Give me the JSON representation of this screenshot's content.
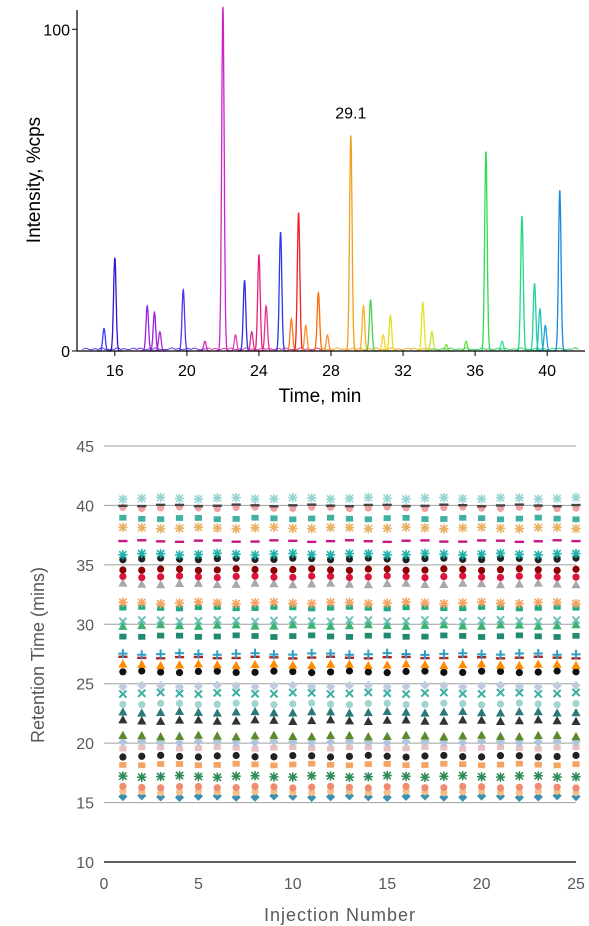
{
  "chart_data": [
    {
      "type": "line",
      "xlabel": "Time, min",
      "ylabel": "Intensity, %cps",
      "xlim": [
        13.9,
        42.1
      ],
      "ylim": [
        0,
        106
      ],
      "x_ticks": [
        "16",
        "20",
        "24",
        "28",
        "32",
        "36",
        "40"
      ],
      "y_ticks": [
        "0",
        "100"
      ],
      "annotations": [
        {
          "text": "29.1",
          "x": 29.1,
          "y": 71
        }
      ],
      "peaks": [
        {
          "rt": 15.4,
          "height": 7,
          "color": "#3a3aff"
        },
        {
          "rt": 16.0,
          "height": 29,
          "color": "#2a1acc"
        },
        {
          "rt": 17.8,
          "height": 14,
          "color": "#9b1ee0"
        },
        {
          "rt": 18.2,
          "height": 12,
          "color": "#9b1ee0"
        },
        {
          "rt": 18.5,
          "height": 6,
          "color": "#b02ad8"
        },
        {
          "rt": 19.8,
          "height": 19,
          "color": "#4a3af0"
        },
        {
          "rt": 21.0,
          "height": 3,
          "color": "#d02ad0"
        },
        {
          "rt": 22.0,
          "height": 107,
          "color": "#cc22cc"
        },
        {
          "rt": 22.7,
          "height": 5,
          "color": "#e040c0"
        },
        {
          "rt": 23.2,
          "height": 22,
          "color": "#3030e0"
        },
        {
          "rt": 23.6,
          "height": 6,
          "color": "#e03090"
        },
        {
          "rt": 24.0,
          "height": 30,
          "color": "#e8207a"
        },
        {
          "rt": 24.4,
          "height": 14,
          "color": "#e83090"
        },
        {
          "rt": 25.2,
          "height": 37,
          "color": "#2a3ae8"
        },
        {
          "rt": 25.8,
          "height": 10,
          "color": "#ff7a20"
        },
        {
          "rt": 26.2,
          "height": 43,
          "color": "#ee2222"
        },
        {
          "rt": 26.6,
          "height": 8,
          "color": "#ff9030"
        },
        {
          "rt": 27.3,
          "height": 18,
          "color": "#ff6a00"
        },
        {
          "rt": 27.8,
          "height": 5,
          "color": "#ff8c30"
        },
        {
          "rt": 29.1,
          "height": 67,
          "color": "#f0a020"
        },
        {
          "rt": 29.8,
          "height": 14,
          "color": "#ffb020"
        },
        {
          "rt": 30.2,
          "height": 16,
          "color": "#50d050"
        },
        {
          "rt": 30.9,
          "height": 5,
          "color": "#ffd020"
        },
        {
          "rt": 31.3,
          "height": 11,
          "color": "#e0e020"
        },
        {
          "rt": 33.1,
          "height": 15,
          "color": "#e8e020"
        },
        {
          "rt": 33.6,
          "height": 6,
          "color": "#c8e020"
        },
        {
          "rt": 34.4,
          "height": 2,
          "color": "#80e030"
        },
        {
          "rt": 35.5,
          "height": 3,
          "color": "#60e040"
        },
        {
          "rt": 36.6,
          "height": 62,
          "color": "#30dc50"
        },
        {
          "rt": 37.5,
          "height": 3,
          "color": "#30e080"
        },
        {
          "rt": 38.6,
          "height": 42,
          "color": "#20d880"
        },
        {
          "rt": 39.3,
          "height": 21,
          "color": "#20d0a0"
        },
        {
          "rt": 39.6,
          "height": 13,
          "color": "#20c0c0"
        },
        {
          "rt": 39.9,
          "height": 8,
          "color": "#20a0e0"
        },
        {
          "rt": 40.7,
          "height": 50,
          "color": "#1888e0"
        }
      ]
    },
    {
      "type": "scatter",
      "xlabel": "Injection Number",
      "ylabel": "Retention Time (mins)",
      "xlim": [
        0,
        25
      ],
      "ylim": [
        10,
        45
      ],
      "x_ticks": [
        "0",
        "5",
        "10",
        "15",
        "20",
        "25"
      ],
      "y_ticks": [
        "10",
        "15",
        "20",
        "25",
        "30",
        "35",
        "40",
        "45"
      ],
      "grid": true,
      "x": [
        1,
        2,
        3,
        4,
        5,
        6,
        7,
        8,
        9,
        10,
        11,
        12,
        13,
        14,
        15,
        16,
        17,
        18,
        19,
        20,
        21,
        22,
        23,
        24,
        25
      ],
      "series": [
        {
          "rt": 15.5,
          "marker": "diamond",
          "color": "#3b8fb0"
        },
        {
          "rt": 15.9,
          "marker": "circle",
          "color": "#f3c08a"
        },
        {
          "rt": 16.3,
          "marker": "circle",
          "color": "#f08b72"
        },
        {
          "rt": 17.2,
          "marker": "asterisk",
          "color": "#2e8b57"
        },
        {
          "rt": 18.2,
          "marker": "square",
          "color": "#f4a460"
        },
        {
          "rt": 18.9,
          "marker": "circle",
          "color": "#222222"
        },
        {
          "rt": 19.6,
          "marker": "square",
          "color": "#e8c0c0"
        },
        {
          "rt": 20.1,
          "marker": "diamond",
          "color": "#b0c4de"
        },
        {
          "rt": 20.6,
          "marker": "triangle",
          "color": "#5a8a2a"
        },
        {
          "rt": 21.9,
          "marker": "triangle",
          "color": "#333333"
        },
        {
          "rt": 22.6,
          "marker": "triangle",
          "color": "#2a7a7a"
        },
        {
          "rt": 23.3,
          "marker": "circle",
          "color": "#9fd4d0"
        },
        {
          "rt": 24.2,
          "marker": "x",
          "color": "#3cb0a0"
        },
        {
          "rt": 24.8,
          "marker": "diamond",
          "color": "#c0cbe0"
        },
        {
          "rt": 26.0,
          "marker": "circle",
          "color": "#111111"
        },
        {
          "rt": 26.6,
          "marker": "triangle",
          "color": "#ff8c00"
        },
        {
          "rt": 27.2,
          "marker": "dash",
          "color": "#b22222"
        },
        {
          "rt": 27.5,
          "marker": "plus",
          "color": "#2e9ec0"
        },
        {
          "rt": 29.0,
          "marker": "square",
          "color": "#1f8a70"
        },
        {
          "rt": 29.9,
          "marker": "triangle",
          "color": "#3cb371"
        },
        {
          "rt": 30.3,
          "marker": "x",
          "color": "#70c0b8"
        },
        {
          "rt": 31.4,
          "marker": "square",
          "color": "#20aa8a"
        },
        {
          "rt": 31.8,
          "marker": "asterisk",
          "color": "#f4a460"
        },
        {
          "rt": 33.4,
          "marker": "triangle",
          "color": "#a9a9a9"
        },
        {
          "rt": 34.0,
          "marker": "circle",
          "color": "#dc143c"
        },
        {
          "rt": 34.6,
          "marker": "circle",
          "color": "#8b0000"
        },
        {
          "rt": 35.5,
          "marker": "circle",
          "color": "#222222"
        },
        {
          "rt": 35.9,
          "marker": "asterisk",
          "color": "#20b2aa"
        },
        {
          "rt": 37.0,
          "marker": "dash",
          "color": "#c71585"
        },
        {
          "rt": 38.1,
          "marker": "asterisk",
          "color": "#e8b060"
        },
        {
          "rt": 38.9,
          "marker": "square",
          "color": "#40b0a0"
        },
        {
          "rt": 39.8,
          "marker": "circle",
          "color": "#f0a0a0"
        },
        {
          "rt": 40.0,
          "marker": "dash",
          "color": "#444444"
        },
        {
          "rt": 40.6,
          "marker": "asterisk",
          "color": "#96d3d3"
        }
      ]
    }
  ]
}
